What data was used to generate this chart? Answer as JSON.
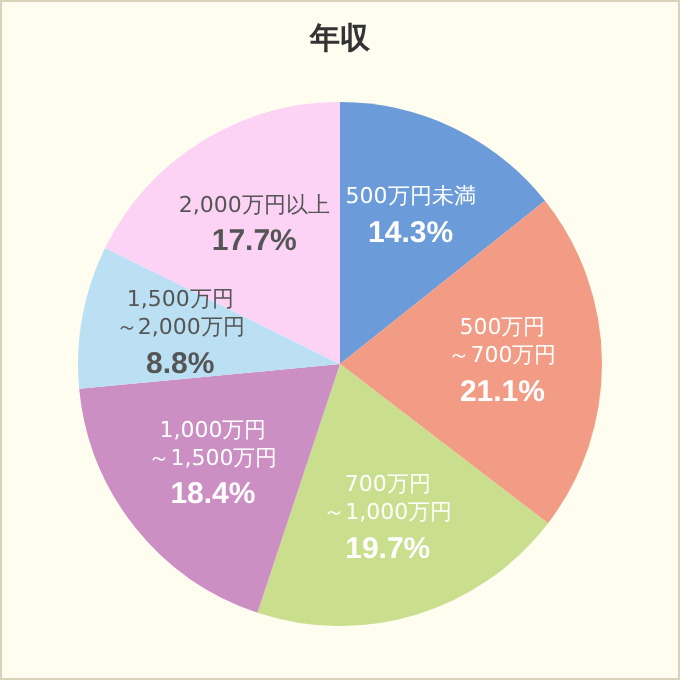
{
  "chart_data": {
    "type": "pie",
    "title": "年収",
    "categories": [
      "500万円未満",
      "500万円～700万円",
      "700万円～1,000万円",
      "1,000万円～1,500万円",
      "1,500万円～2,000万円",
      "2,000万円以上"
    ],
    "values": [
      14.3,
      21.1,
      19.7,
      18.4,
      8.8,
      17.7
    ],
    "colors": [
      "#6b9bd8",
      "#f29c85",
      "#c9df8e",
      "#cc8fc4",
      "#bbe0f3",
      "#fcd2f5"
    ],
    "value_labels": [
      "14.3%",
      "21.1%",
      "19.7%",
      "18.4%",
      "8.8%",
      "17.7%"
    ],
    "legend": false
  }
}
